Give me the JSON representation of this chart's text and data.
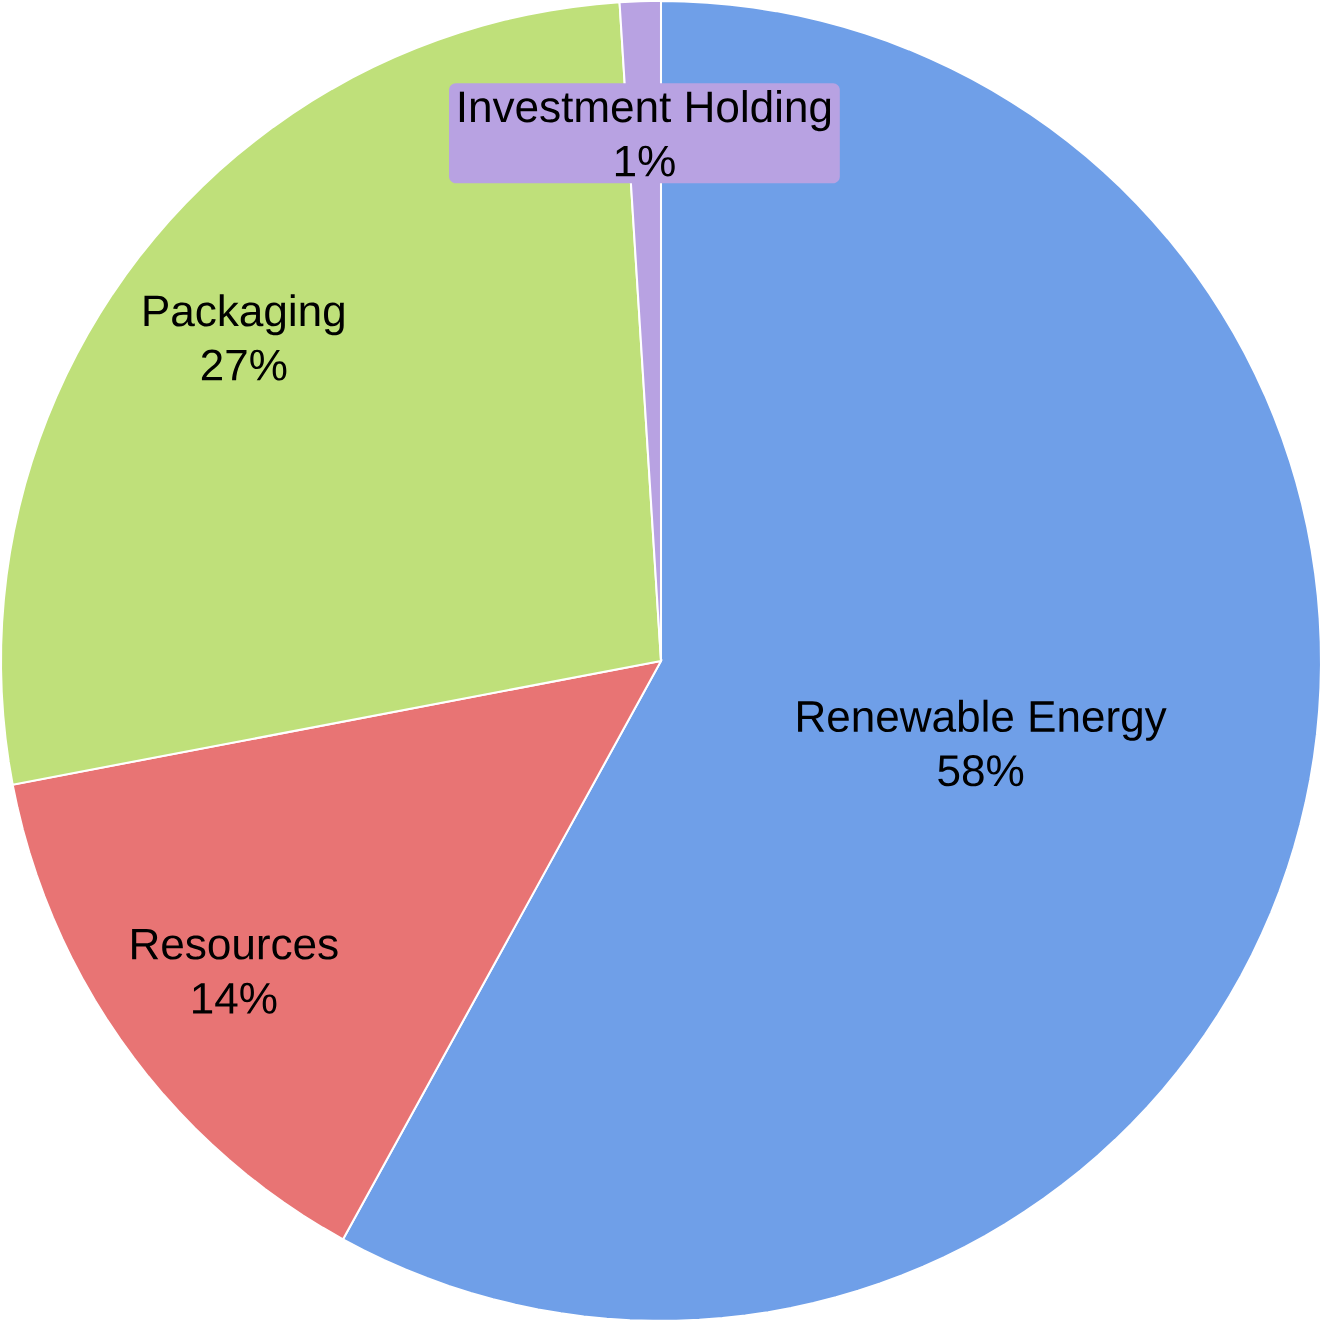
{
  "chart_data": {
    "type": "pie",
    "categories": [
      "Renewable Energy",
      "Resources",
      "Packaging",
      "Investment Holding"
    ],
    "values": [
      58,
      14,
      27,
      1
    ],
    "value_labels": [
      "58%",
      "14%",
      "27%",
      "1%"
    ],
    "colors": [
      "#6f9fe8",
      "#e87474",
      "#bfe07a",
      "#b8a2e2"
    ]
  }
}
